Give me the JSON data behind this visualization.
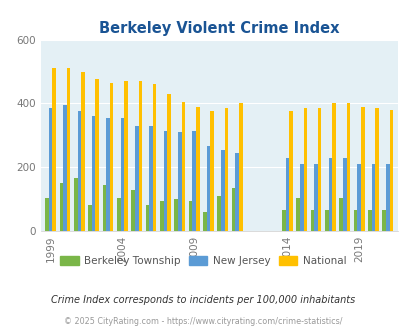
{
  "title": "Berkeley Violent Crime Index",
  "subtitle": "Crime Index corresponds to incidents per 100,000 inhabitants",
  "footer": "© 2025 CityRating.com - https://www.cityrating.com/crime-statistics/",
  "years_seg1": [
    1999,
    2000,
    2001,
    2002,
    2003,
    2004,
    2005,
    2006,
    2007,
    2008,
    2009,
    2010,
    2011,
    2012
  ],
  "years_seg2": [
    2014,
    2015,
    2016,
    2017,
    2018,
    2019,
    2020,
    2021
  ],
  "berk_seg1": [
    105,
    150,
    165,
    80,
    145,
    105,
    130,
    80,
    95,
    100,
    95,
    60,
    110,
    135
  ],
  "berk_seg2": [
    65,
    105,
    65,
    65,
    105,
    65,
    65,
    65
  ],
  "nj_seg1": [
    385,
    395,
    375,
    360,
    355,
    355,
    330,
    330,
    315,
    310,
    315,
    265,
    255,
    245
  ],
  "nj_seg2": [
    230,
    210,
    210,
    230,
    230,
    210,
    210,
    210
  ],
  "nat_seg1": [
    510,
    510,
    500,
    475,
    465,
    470,
    470,
    460,
    430,
    405,
    390,
    375,
    385,
    400
  ],
  "nat_seg2": [
    375,
    385,
    385,
    400,
    400,
    390,
    385,
    380
  ],
  "ylim": [
    0,
    600
  ],
  "yticks": [
    0,
    200,
    400,
    600
  ],
  "xticks": [
    1999,
    2004,
    2009,
    2014,
    2019
  ],
  "color_berkeley": "#7ab648",
  "color_nj": "#5b9bd5",
  "color_national": "#ffc000",
  "bg_color": "#e4f0f5",
  "title_color": "#1a5494",
  "grid_color": "#ffffff",
  "tick_color": "#777777",
  "subtitle_color": "#333333",
  "footer_color": "#999999"
}
